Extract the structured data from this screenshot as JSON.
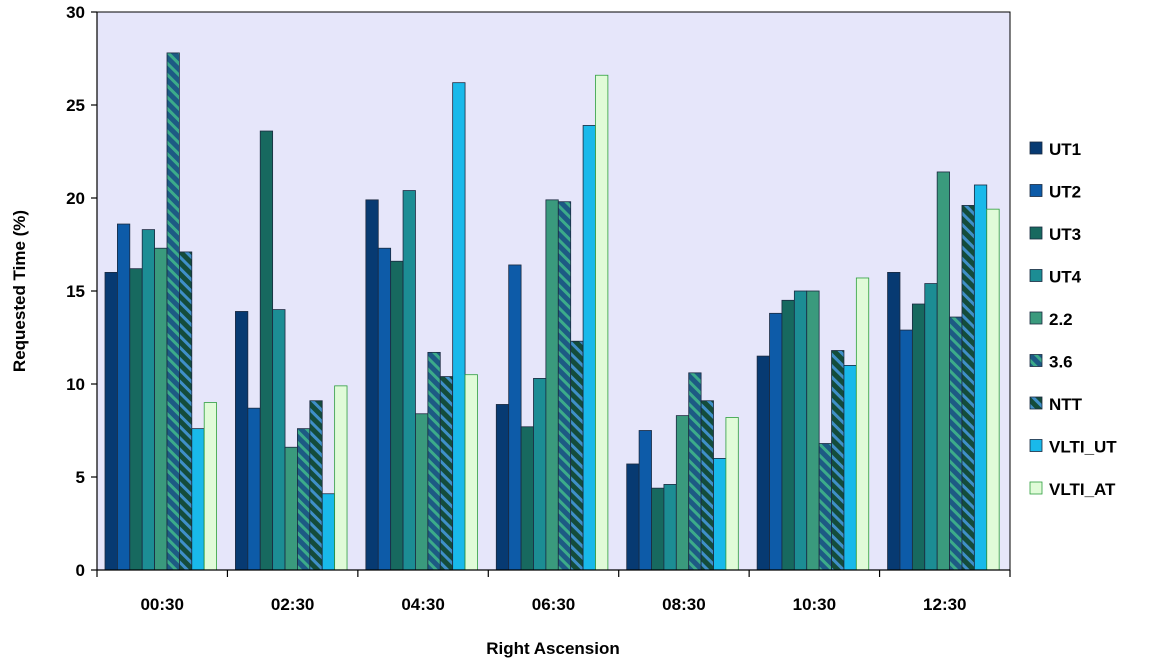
{
  "chart_data": {
    "type": "bar",
    "title": "",
    "xlabel": "Right Ascension",
    "ylabel": "Requested Time (%)",
    "ylim": [
      0,
      30
    ],
    "yticks": [
      "0",
      "5",
      "10",
      "15",
      "20",
      "25",
      "30"
    ],
    "grid": false,
    "legend_position": "right",
    "plot_background": "#e6e6fa",
    "categories": [
      "00:30",
      "02:30",
      "04:30",
      "06:30",
      "08:30",
      "10:30",
      "12:30"
    ],
    "series": [
      {
        "name": "UT1",
        "color": "#073a72",
        "pattern": "solid",
        "values": [
          16.0,
          13.9,
          19.9,
          8.9,
          5.7,
          11.5,
          16.0
        ]
      },
      {
        "name": "UT2",
        "color": "#0d5ba8",
        "pattern": "solid",
        "values": [
          18.6,
          8.7,
          17.3,
          16.4,
          7.5,
          13.8,
          12.9
        ]
      },
      {
        "name": "UT3",
        "color": "#17695f",
        "pattern": "solid",
        "values": [
          16.2,
          23.6,
          16.6,
          7.7,
          4.4,
          14.5,
          14.3
        ]
      },
      {
        "name": "UT4",
        "color": "#1c8d94",
        "pattern": "solid",
        "values": [
          18.3,
          14.0,
          20.4,
          10.3,
          4.6,
          15.0,
          15.4
        ]
      },
      {
        "name": "2.2",
        "color": "#3a9a7d",
        "pattern": "solid",
        "values": [
          17.3,
          6.6,
          8.4,
          19.9,
          8.3,
          15.0,
          21.4
        ]
      },
      {
        "name": "3.6",
        "color": "#1d5a84",
        "pattern": "stripe-blue",
        "values": [
          27.8,
          7.6,
          11.7,
          19.8,
          10.6,
          6.8,
          13.6
        ]
      },
      {
        "name": "NTT",
        "color": "#144c3b",
        "pattern": "stripe-green",
        "values": [
          17.1,
          9.1,
          10.4,
          12.3,
          9.1,
          11.8,
          19.6
        ]
      },
      {
        "name": "VLTI_UT",
        "color": "#19b9ea",
        "pattern": "solid",
        "values": [
          7.6,
          4.1,
          26.2,
          23.9,
          6.0,
          11.0,
          20.7
        ]
      },
      {
        "name": "VLTI_AT",
        "color": "#e0fbd8",
        "pattern": "outline-green",
        "values": [
          9.0,
          9.9,
          10.5,
          26.6,
          8.2,
          15.7,
          19.4
        ]
      }
    ]
  }
}
